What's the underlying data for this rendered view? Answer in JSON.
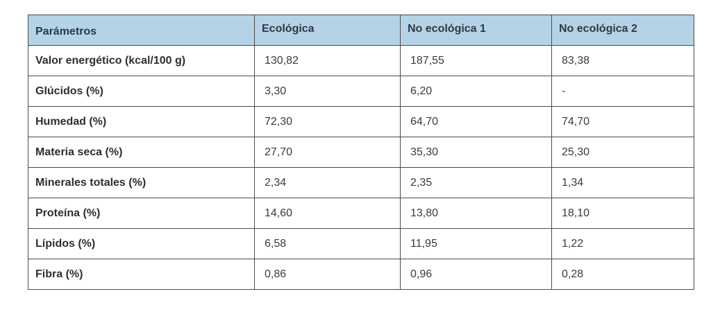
{
  "table": {
    "headers": [
      "Parámetros",
      "Ecológica",
      "No ecológica 1",
      "No ecológica 2"
    ],
    "rows": [
      [
        "Valor energético (kcal/100 g)",
        "130,82",
        "187,55",
        "83,38"
      ],
      [
        "Glúcidos (%)",
        "3,30",
        "6,20",
        "-"
      ],
      [
        "Humedad (%)",
        "72,30",
        "64,70",
        "74,70"
      ],
      [
        "Materia seca (%)",
        "27,70",
        "35,30",
        "25,30"
      ],
      [
        "Minerales totales (%)",
        "2,34",
        "2,35",
        "1,34"
      ],
      [
        "Proteína (%)",
        "14,60",
        "13,80",
        "18,10"
      ],
      [
        "Lípidos (%)",
        "6,58",
        "11,95",
        "1,22"
      ],
      [
        "Fibra (%)",
        "0,86",
        "0,96",
        "0,28"
      ]
    ]
  },
  "colors": {
    "header_bg": "#b5d3e6",
    "border": "#4a4a4a"
  }
}
